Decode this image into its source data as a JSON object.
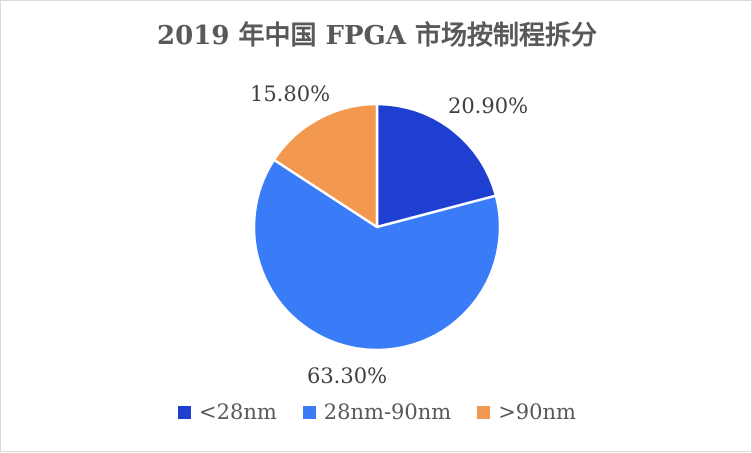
{
  "chart_data": {
    "type": "pie",
    "title": "2019 年中国 FPGA 市场按制程拆分",
    "categories": [
      "<28nm",
      "28nm-90nm",
      ">90nm"
    ],
    "values": [
      20.9,
      63.3,
      15.8
    ],
    "data_labels": [
      "20.90%",
      "63.30%",
      "15.80%"
    ],
    "colors": [
      "#1f3fd1",
      "#3a7bf7",
      "#f2994f"
    ],
    "start_angle_deg": 0,
    "direction": "clockwise",
    "legend_position": "bottom"
  }
}
